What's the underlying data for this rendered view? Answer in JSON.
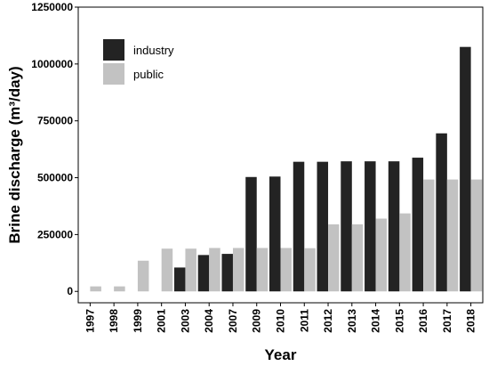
{
  "chart_data": {
    "type": "bar",
    "xlabel": "Year",
    "ylabel": "Brine discharge (m³/day)",
    "categories": [
      "1997",
      "1998",
      "1999",
      "2001",
      "2003",
      "2004",
      "2007",
      "2009",
      "2010",
      "2011",
      "2012",
      "2013",
      "2014",
      "2015",
      "2016",
      "2017",
      "2018"
    ],
    "series": [
      {
        "name": "industry",
        "color": "#232323",
        "values": [
          0,
          0,
          0,
          0,
          105000,
          160000,
          165000,
          503000,
          505000,
          570000,
          570000,
          572000,
          572000,
          572000,
          588000,
          695000,
          1075000
        ]
      },
      {
        "name": "public",
        "color": "#c2c2c2",
        "values": [
          22000,
          22000,
          135000,
          188000,
          188000,
          191000,
          191000,
          191000,
          191000,
          190000,
          295000,
          295000,
          320000,
          343000,
          492000,
          492000,
          492000
        ]
      }
    ],
    "yticks": [
      0,
      250000,
      500000,
      750000,
      1000000,
      1250000
    ],
    "yticklabels": [
      "0",
      "250000",
      "500000",
      "750000",
      "1000000",
      "1250000"
    ],
    "ylim": [
      -50000,
      1250000
    ],
    "legend_position": "top-left",
    "grid": false
  }
}
